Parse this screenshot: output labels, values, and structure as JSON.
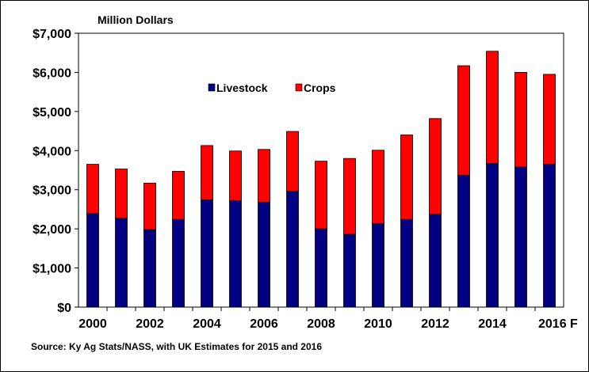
{
  "chart_data": {
    "type": "bar",
    "stacked": true,
    "title": "Million Dollars",
    "categories": [
      "2000",
      "2001",
      "2002",
      "2003",
      "2004",
      "2005",
      "2006",
      "2007",
      "2008",
      "2009",
      "2010",
      "2011",
      "2012",
      "2013",
      "2014",
      "2015",
      "2016"
    ],
    "x_tick_labels": [
      "2000",
      "2002",
      "2004",
      "2006",
      "2008",
      "2010",
      "2012",
      "2014",
      "2016 F"
    ],
    "series": [
      {
        "name": "Livestock",
        "color": "#000080",
        "values": [
          2390,
          2270,
          1980,
          2240,
          2740,
          2720,
          2680,
          2960,
          2000,
          1860,
          2130,
          2240,
          2370,
          3370,
          3670,
          3580,
          3650
        ]
      },
      {
        "name": "Crops",
        "color": "#ff0000",
        "values": [
          1260,
          1260,
          1190,
          1230,
          1390,
          1270,
          1350,
          1530,
          1730,
          1940,
          1880,
          2160,
          2450,
          2800,
          2870,
          2420,
          2300
        ]
      }
    ],
    "ylim": [
      0,
      7000
    ],
    "y_ticks": [
      "$0",
      "$1,000",
      "$2,000",
      "$3,000",
      "$4,000",
      "$5,000",
      "$6,000",
      "$7,000"
    ],
    "y_tick_values": [
      0,
      1000,
      2000,
      3000,
      4000,
      5000,
      6000,
      7000
    ],
    "grid": false,
    "legend_position": "top-center"
  },
  "source_note": "Source:  Ky Ag Stats/NASS, with UK Estimates for 2015 and 2016"
}
